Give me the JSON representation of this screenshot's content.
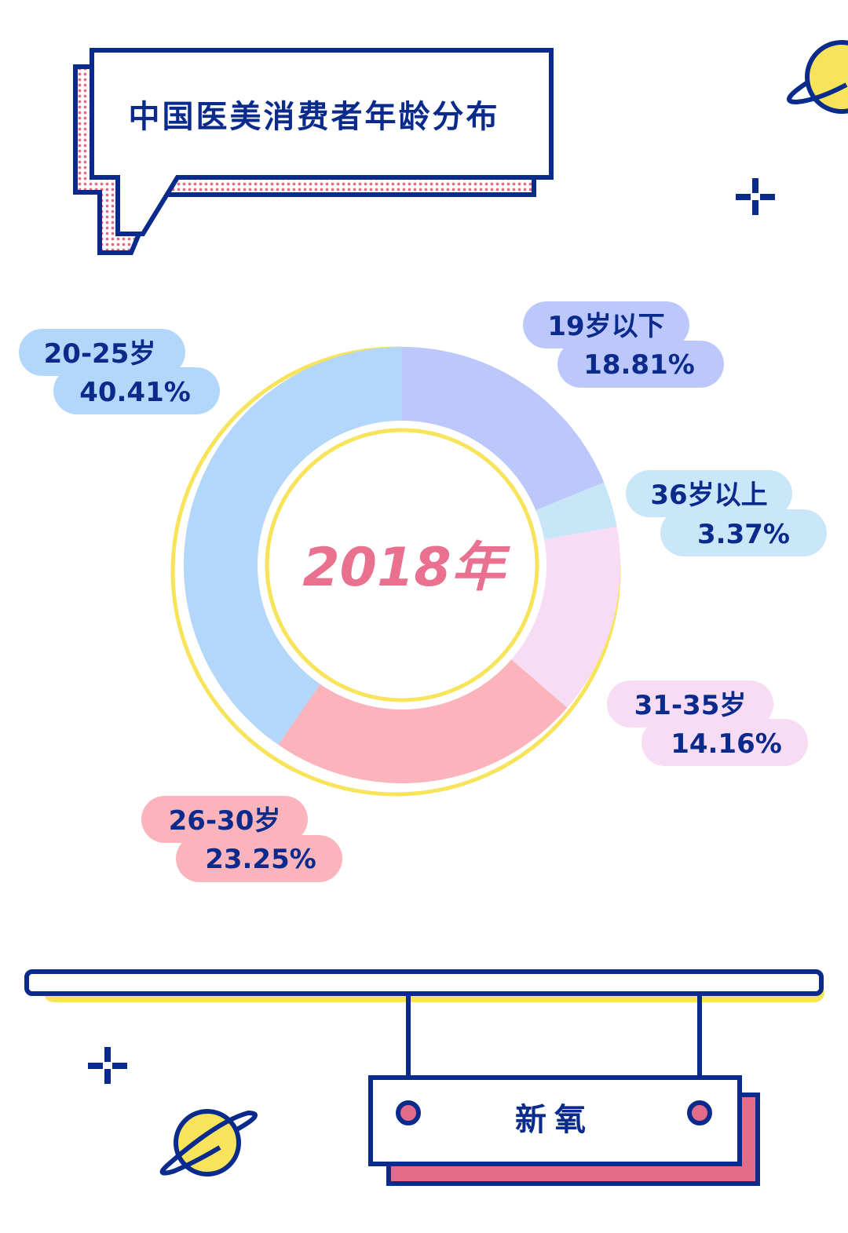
{
  "title": "中国医美消费者年龄分布",
  "brand": "新氧",
  "colors": {
    "navy": "#0a2a8c",
    "yellow": "#f7e45a",
    "pink_accent": "#e9708f",
    "dot_pink": "#e56b8a"
  },
  "chart_data": {
    "type": "pie",
    "donut": true,
    "center_label": "2018年",
    "series": [
      {
        "label": "19岁以下",
        "value_text": "18.81%",
        "value": 18.81,
        "color": "#bcc8fb",
        "pill_color": "#bcc8fb",
        "label_position": "top-right"
      },
      {
        "label": "36岁以上",
        "value_text": "3.37%",
        "value": 3.37,
        "color": "#c7e7f8",
        "pill_color": "#c9e7f9",
        "label_position": "right"
      },
      {
        "label": "31-35岁",
        "value_text": "14.16%",
        "value": 14.16,
        "color": "#f7dcf4",
        "pill_color": "#f7dcf4",
        "label_position": "bottom-right"
      },
      {
        "label": "26-30岁",
        "value_text": "23.25%",
        "value": 23.25,
        "color": "#fbb4bb",
        "pill_color": "#fbb4bb",
        "label_position": "bottom-left"
      },
      {
        "label": "20-25岁",
        "value_text": "40.41%",
        "value": 40.41,
        "color": "#b3d7fa",
        "pill_color": "#b3d7fa",
        "label_position": "top-left"
      }
    ]
  },
  "icons": {
    "planet": "planet-icon",
    "sparkle": "sparkle-icon"
  }
}
